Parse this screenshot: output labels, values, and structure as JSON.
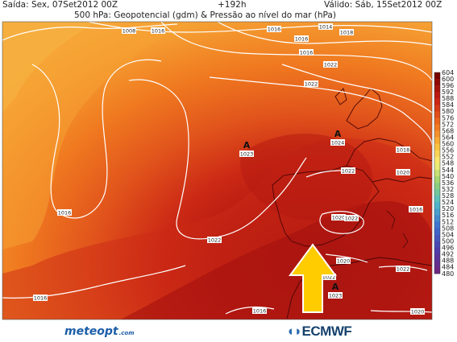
{
  "header": {
    "issued": "Saída: Sex, 07Set2012 00Z",
    "title": "500 hPa: Geopotencial (gdm) & Pressão ao nível do mar (hPa)",
    "lead": "+192h",
    "valid": "Válido: Sáb, 15Set2012 00Z"
  },
  "map": {
    "isobar_labels": [
      "1016",
      "1008",
      "1016",
      "1014",
      "1016",
      "1016",
      "1022",
      "1022",
      "1022",
      "1020",
      "1016",
      "1016",
      "1022",
      "1020",
      "1022",
      "1020",
      "1022",
      "1022",
      "1020",
      "1018",
      "1016",
      "1016",
      "1018"
    ],
    "high_centers": [
      {
        "symbol": "A",
        "value": "1023"
      },
      {
        "symbol": "A",
        "value": "1024"
      },
      {
        "symbol": "A",
        "value": "1023"
      }
    ],
    "arrow_color": "#ffcc00"
  },
  "colorbar": {
    "ticks": [
      "604",
      "600",
      "596",
      "592",
      "588",
      "584",
      "580",
      "576",
      "572",
      "568",
      "564",
      "560",
      "556",
      "552",
      "548",
      "544",
      "540",
      "536",
      "532",
      "528",
      "524",
      "520",
      "516",
      "512",
      "508",
      "504",
      "500",
      "496",
      "492",
      "488",
      "484",
      "480"
    ]
  },
  "logos": {
    "meteo_text": "meteopt",
    "meteo_suffix": ".com",
    "ecmwf_text": "ECMWF"
  },
  "colors": {
    "deep_red": "#a30f0f",
    "red": "#cc2a15",
    "orange_red": "#e2561c",
    "orange": "#f07a20",
    "light_orange": "#f5a033"
  }
}
